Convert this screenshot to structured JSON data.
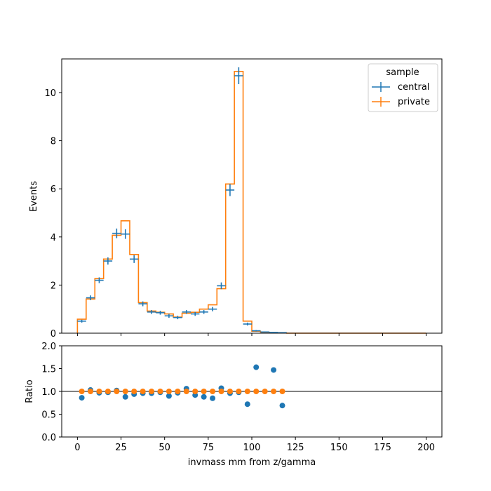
{
  "chart_data": [
    {
      "type": "step",
      "panel": "main",
      "ylabel": "Events",
      "ylim": [
        0,
        11.4
      ],
      "xlim": [
        -9,
        209
      ],
      "yticks": [
        "0",
        "2",
        "4",
        "6",
        "8",
        "10"
      ],
      "ytick_values": [
        0,
        2,
        4,
        6,
        8,
        10
      ],
      "legend": {
        "title": "sample",
        "placement": "top-right"
      },
      "series": [
        {
          "name": "central",
          "style": "errorbar",
          "color": "#1f77b4",
          "x": [
            2.5,
            7.5,
            12.5,
            17.5,
            22.5,
            27.5,
            32.5,
            37.5,
            42.5,
            47.5,
            52.5,
            57.5,
            62.5,
            67.5,
            72.5,
            77.5,
            82.5,
            87.5,
            92.5,
            97.5,
            102.5,
            107.5,
            112.5,
            117.5
          ],
          "values": [
            0.5,
            1.47,
            2.2,
            3.0,
            4.15,
            4.12,
            3.08,
            1.22,
            0.88,
            0.85,
            0.72,
            0.65,
            0.88,
            0.8,
            0.88,
            1.0,
            1.97,
            5.95,
            10.7,
            0.38,
            0.1,
            0.05,
            0.03,
            0.02
          ],
          "errors": [
            0.06,
            0.1,
            0.12,
            0.15,
            0.2,
            0.2,
            0.16,
            0.1,
            0.08,
            0.08,
            0.08,
            0.07,
            0.08,
            0.08,
            0.08,
            0.09,
            0.14,
            0.25,
            0.35,
            0.06,
            0.03,
            0.02,
            0.01,
            0.01
          ]
        },
        {
          "name": "private",
          "style": "step",
          "color": "#ff7f0e",
          "edges": [
            0,
            5,
            10,
            15,
            20,
            25,
            30,
            35,
            40,
            45,
            50,
            55,
            60,
            65,
            70,
            75,
            80,
            85,
            90,
            95,
            100,
            105,
            110,
            115,
            120,
            200
          ],
          "values": [
            0.58,
            1.42,
            2.27,
            3.08,
            4.07,
            4.67,
            3.27,
            1.27,
            0.92,
            0.87,
            0.8,
            0.67,
            0.83,
            0.87,
            1.0,
            1.18,
            1.85,
            6.2,
            10.88,
            0.5,
            0.08,
            0.04,
            0.02,
            0.01,
            0.0
          ]
        }
      ]
    },
    {
      "type": "scatter",
      "panel": "ratio",
      "xlabel": "invmass mm from z/gamma",
      "ylabel": "Ratio",
      "ylim": [
        0,
        2.0
      ],
      "xlim": [
        -9,
        209
      ],
      "yticks": [
        "0.0",
        "0.5",
        "1.0",
        "1.5",
        "2.0"
      ],
      "ytick_values": [
        0,
        0.5,
        1.0,
        1.5,
        2.0
      ],
      "xticks": [
        "0",
        "25",
        "50",
        "75",
        "100",
        "125",
        "150",
        "175",
        "200"
      ],
      "xtick_values": [
        0,
        25,
        50,
        75,
        100,
        125,
        150,
        175,
        200
      ],
      "reference_line": 1.0,
      "series": [
        {
          "name": "central",
          "color": "#1f77b4",
          "x": [
            2.5,
            7.5,
            12.5,
            17.5,
            22.5,
            27.5,
            32.5,
            37.5,
            42.5,
            47.5,
            52.5,
            57.5,
            62.5,
            67.5,
            72.5,
            77.5,
            82.5,
            87.5,
            92.5,
            97.5,
            102.5,
            112.5,
            117.5
          ],
          "values": [
            0.86,
            1.03,
            0.97,
            0.98,
            1.02,
            0.88,
            0.94,
            0.96,
            0.96,
            0.98,
            0.9,
            0.97,
            1.06,
            0.92,
            0.88,
            0.85,
            1.07,
            0.96,
            0.98,
            0.72,
            1.53,
            1.47,
            0.69
          ]
        },
        {
          "name": "private",
          "color": "#ff7f0e",
          "x": [
            2.5,
            7.5,
            12.5,
            17.5,
            22.5,
            27.5,
            32.5,
            37.5,
            42.5,
            47.5,
            52.5,
            57.5,
            62.5,
            67.5,
            72.5,
            77.5,
            82.5,
            87.5,
            92.5,
            97.5,
            102.5,
            107.5,
            112.5,
            117.5
          ],
          "values": [
            1,
            1,
            1,
            1,
            1,
            1,
            1,
            1,
            1,
            1,
            1,
            1,
            1,
            1,
            1,
            1,
            1,
            1,
            1,
            1,
            1,
            1,
            1,
            1
          ]
        }
      ]
    }
  ]
}
